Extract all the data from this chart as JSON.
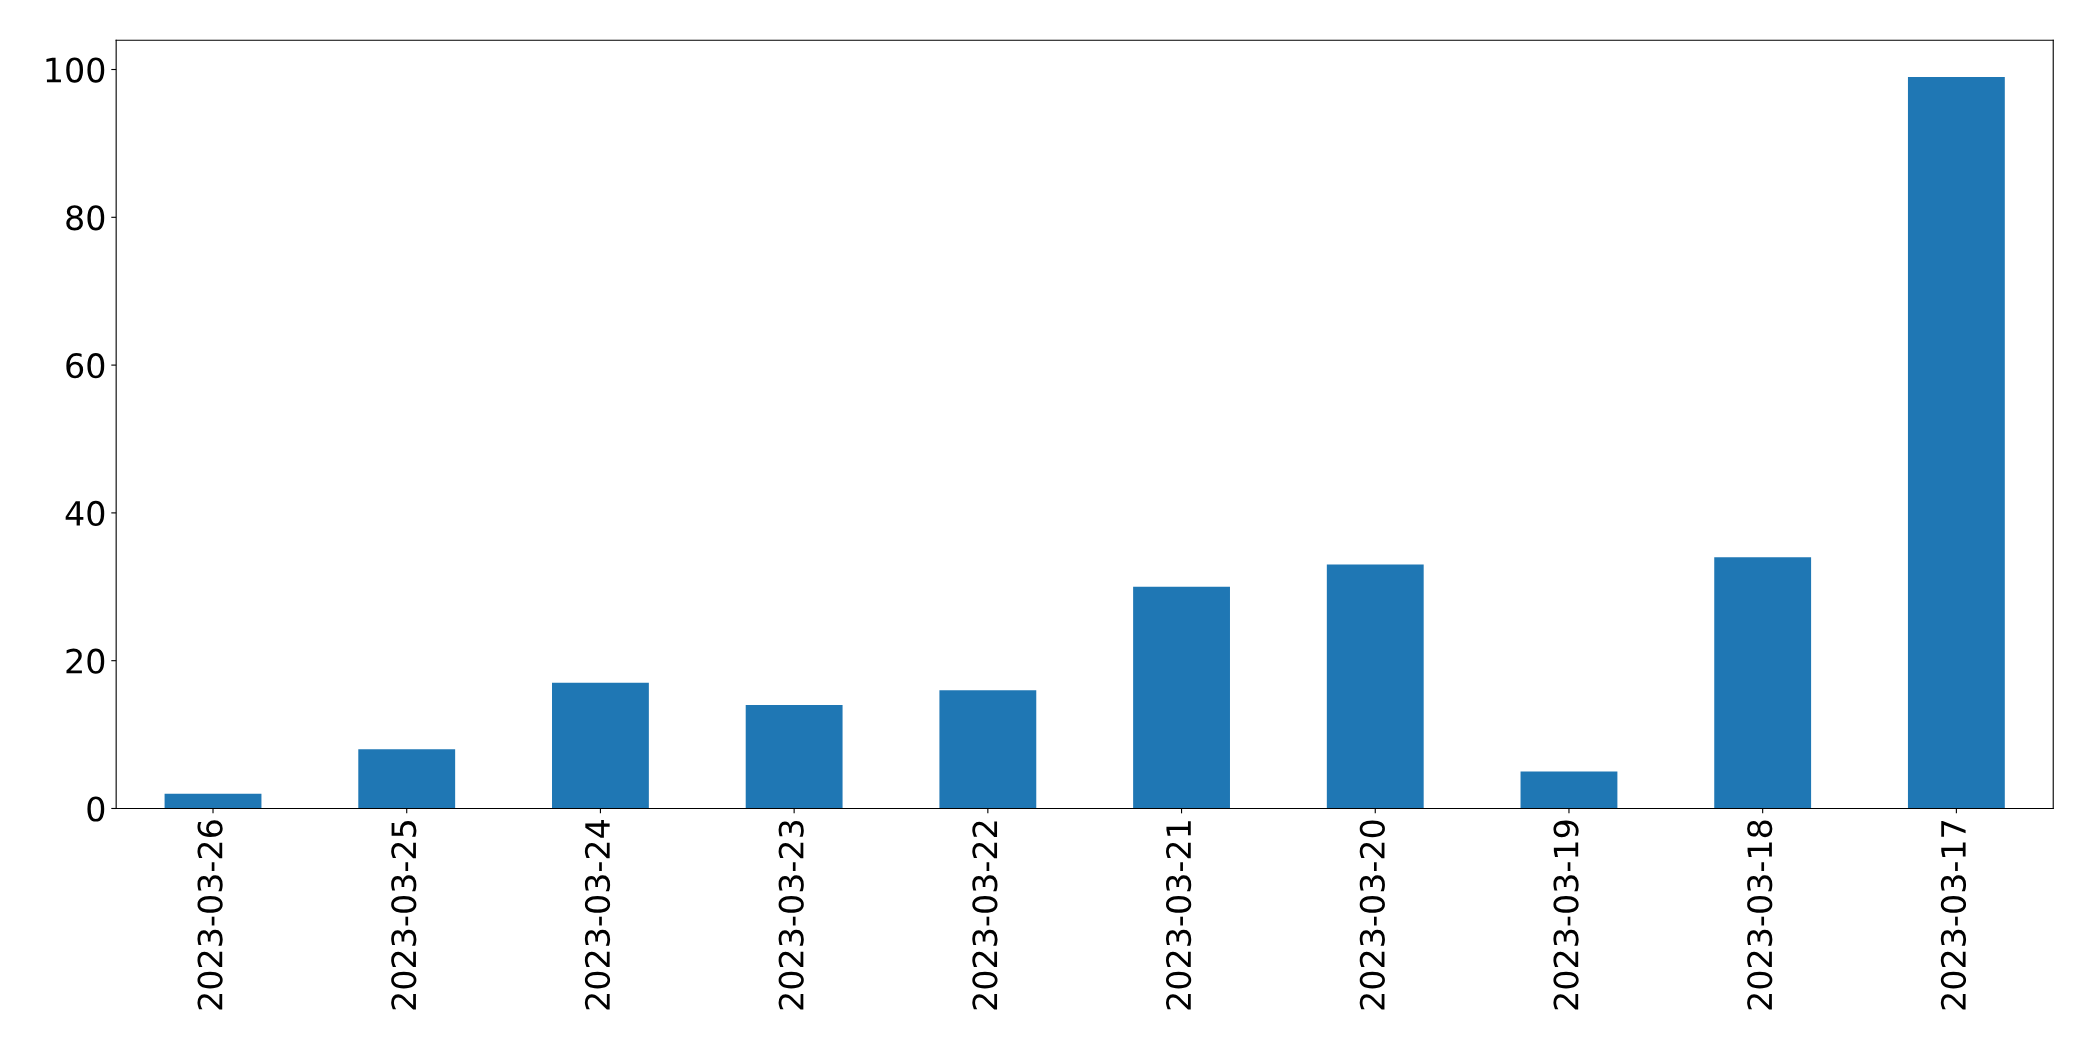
{
  "chart_data": {
    "type": "bar",
    "categories": [
      "2023-03-26",
      "2023-03-25",
      "2023-03-24",
      "2023-03-23",
      "2023-03-22",
      "2023-03-21",
      "2023-03-20",
      "2023-03-19",
      "2023-03-18",
      "2023-03-17"
    ],
    "values": [
      2,
      8,
      17,
      14,
      16,
      30,
      33,
      5,
      34,
      99
    ],
    "color": "#1f77b4",
    "ylim": [
      0,
      103.95
    ],
    "yticks": [
      0,
      20,
      40,
      60,
      80,
      100
    ],
    "grid": false
  }
}
